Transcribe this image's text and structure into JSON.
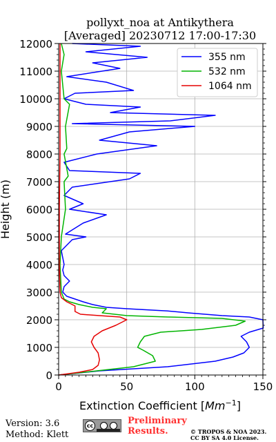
{
  "chart_data": {
    "type": "line",
    "title": "pollyxt_noa at Antikythera",
    "subtitle": "[Averaged] 20230712 17:00-17:30",
    "xlabel": "Extinction Coefficient [Mm⁻¹]",
    "ylabel": "Height (m)",
    "xlim": [
      0,
      150
    ],
    "ylim": [
      0,
      12000
    ],
    "xticks": [
      "0",
      "50",
      "100",
      "150"
    ],
    "yticks": [
      "0",
      "1000",
      "2000",
      "3000",
      "4000",
      "5000",
      "6000",
      "7000",
      "8000",
      "9000",
      "10000",
      "11000",
      "12000"
    ],
    "grid": true,
    "legend_position": "top-right",
    "series": [
      {
        "name": "355 nm",
        "color": "#0000ff",
        "points": [
          [
            0,
            0
          ],
          [
            30,
            150
          ],
          [
            80,
            300
          ],
          [
            115,
            500
          ],
          [
            128,
            650
          ],
          [
            136,
            800
          ],
          [
            140,
            1000
          ],
          [
            138,
            1200
          ],
          [
            134,
            1400
          ],
          [
            140,
            1550
          ],
          [
            155,
            1700
          ],
          [
            150,
            2000
          ],
          [
            140,
            2100
          ],
          [
            120,
            2150
          ],
          [
            95,
            2250
          ],
          [
            80,
            2320
          ],
          [
            50,
            2400
          ],
          [
            35,
            2450
          ],
          [
            25,
            2550
          ],
          [
            18,
            2650
          ],
          [
            12,
            2750
          ],
          [
            6,
            2850
          ],
          [
            3,
            3000
          ],
          [
            4,
            3200
          ],
          [
            8,
            3400
          ],
          [
            4,
            3600
          ],
          [
            3,
            3800
          ],
          [
            4,
            4000
          ],
          [
            2,
            4500
          ],
          [
            10,
            4900
          ],
          [
            20,
            5000
          ],
          [
            5,
            5100
          ],
          [
            18,
            5500
          ],
          [
            35,
            5800
          ],
          [
            8,
            6000
          ],
          [
            18,
            6200
          ],
          [
            4,
            6500
          ],
          [
            10,
            6800
          ],
          [
            52,
            7100
          ],
          [
            60,
            7300
          ],
          [
            8,
            7400
          ],
          [
            4,
            7700
          ],
          [
            28,
            8000
          ],
          [
            72,
            8300
          ],
          [
            30,
            8500
          ],
          [
            52,
            8800
          ],
          [
            100,
            9000
          ],
          [
            10,
            9100
          ],
          [
            82,
            9200
          ],
          [
            115,
            9400
          ],
          [
            38,
            9500
          ],
          [
            60,
            9700
          ],
          [
            20,
            9800
          ],
          [
            4,
            10000
          ],
          [
            12,
            10200
          ],
          [
            55,
            10300
          ],
          [
            35,
            10600
          ],
          [
            6,
            10800
          ],
          [
            45,
            11100
          ],
          [
            25,
            11300
          ],
          [
            65,
            11500
          ],
          [
            20,
            11700
          ],
          [
            60,
            11900
          ],
          [
            10,
            12000
          ]
        ]
      },
      {
        "name": "532 nm",
        "color": "#00b400",
        "points": [
          [
            0,
            0
          ],
          [
            28,
            150
          ],
          [
            55,
            300
          ],
          [
            71,
            500
          ],
          [
            69,
            700
          ],
          [
            62,
            900
          ],
          [
            58,
            1000
          ],
          [
            60,
            1200
          ],
          [
            63,
            1400
          ],
          [
            75,
            1550
          ],
          [
            105,
            1650
          ],
          [
            130,
            1800
          ],
          [
            137,
            1950
          ],
          [
            120,
            2050
          ],
          [
            80,
            2100
          ],
          [
            50,
            2150
          ],
          [
            32,
            2250
          ],
          [
            35,
            2400
          ],
          [
            25,
            2450
          ],
          [
            15,
            2550
          ],
          [
            8,
            2650
          ],
          [
            4,
            2750
          ],
          [
            2,
            3000
          ],
          [
            1,
            4000
          ],
          [
            2,
            5000
          ],
          [
            5,
            6000
          ],
          [
            4,
            7000
          ],
          [
            7,
            7200
          ],
          [
            4,
            8000
          ],
          [
            6,
            8200
          ],
          [
            5,
            9000
          ],
          [
            8,
            9800
          ],
          [
            4,
            10000
          ],
          [
            2,
            11000
          ],
          [
            4,
            11600
          ],
          [
            2,
            12000
          ]
        ]
      },
      {
        "name": "1064 nm",
        "color": "#e60000",
        "points": [
          [
            0,
            0
          ],
          [
            15,
            100
          ],
          [
            25,
            200
          ],
          [
            29,
            350
          ],
          [
            30,
            550
          ],
          [
            29,
            800
          ],
          [
            26,
            1000
          ],
          [
            24,
            1200
          ],
          [
            26,
            1400
          ],
          [
            32,
            1600
          ],
          [
            42,
            1800
          ],
          [
            50,
            2000
          ],
          [
            45,
            2100
          ],
          [
            30,
            2150
          ],
          [
            16,
            2200
          ],
          [
            12,
            2300
          ],
          [
            12,
            2500
          ],
          [
            6,
            2650
          ],
          [
            2,
            2800
          ],
          [
            1,
            3000
          ],
          [
            0.5,
            4000
          ],
          [
            0.5,
            6000
          ],
          [
            1,
            8000
          ],
          [
            1,
            10000
          ],
          [
            1,
            12000
          ]
        ]
      }
    ]
  },
  "footer": {
    "version": "Version: 3.6",
    "method": "Method: Klett",
    "preliminary_line1": "Preliminary",
    "preliminary_line2": "Results.",
    "copyright_line1": "© TROPOS & NOA 2023.",
    "copyright_line2": "CC BY SA 4.0 License."
  }
}
